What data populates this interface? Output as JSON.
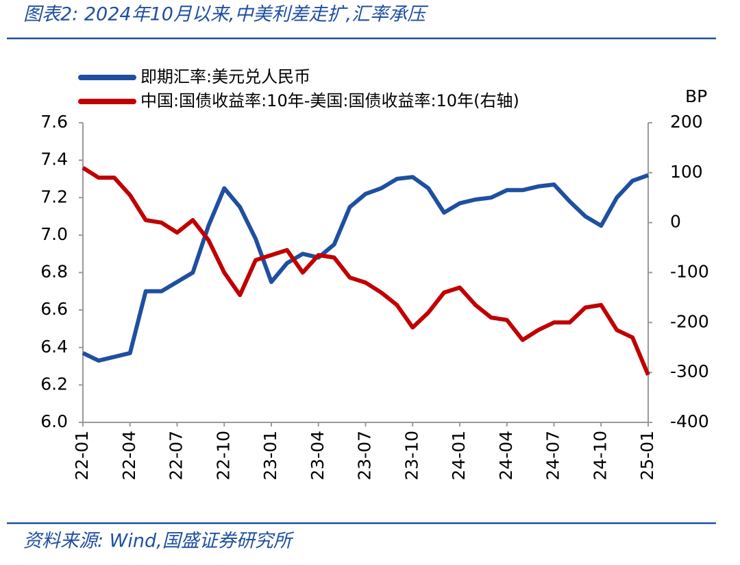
{
  "chart_data": {
    "type": "line",
    "title": "图表2: 2024年10月以来,中美利差走扩,汇率承压",
    "source": "资料来源: Wind,国盛证券研究所",
    "y2_label": "BP",
    "categories": [
      "22-01",
      null,
      null,
      "22-04",
      null,
      null,
      "22-07",
      null,
      null,
      "22-10",
      null,
      null,
      "23-01",
      null,
      null,
      "23-04",
      null,
      null,
      "23-07",
      null,
      null,
      "23-10",
      null,
      null,
      "24-01",
      null,
      null,
      "24-04",
      null,
      null,
      "24-07",
      null,
      null,
      "24-10",
      null,
      null,
      "25-01"
    ],
    "series": [
      {
        "name": "即期汇率:美元兑人民币",
        "color": "#1f4fa0",
        "values": [
          6.37,
          6.33,
          6.35,
          6.37,
          6.7,
          6.7,
          6.75,
          6.8,
          7.05,
          7.25,
          7.15,
          6.98,
          6.75,
          6.85,
          6.9,
          6.88,
          6.95,
          7.15,
          7.22,
          7.25,
          7.3,
          7.31,
          7.25,
          7.12,
          7.17,
          7.19,
          7.2,
          7.24,
          7.24,
          7.26,
          7.27,
          7.18,
          7.1,
          7.05,
          7.2,
          7.29,
          7.32
        ]
      },
      {
        "name": "中国:国债收益率:10年-美国:国债收益率:10年(右轴)",
        "color": "#c00000",
        "axis": "y2",
        "values": [
          110,
          90,
          90,
          55,
          5,
          0,
          -20,
          5,
          -35,
          -100,
          -145,
          -75,
          -65,
          -55,
          -100,
          -65,
          -70,
          -110,
          -120,
          -140,
          -165,
          -210,
          -180,
          -140,
          -130,
          -165,
          -190,
          -195,
          -235,
          -215,
          -200,
          -200,
          -170,
          -165,
          -215,
          -230,
          -305
        ]
      }
    ],
    "ylim": [
      6.0,
      7.6
    ],
    "yticks": [
      {
        "value": 6.0,
        "label": "6.0"
      },
      6.2,
      6.4,
      6.6,
      6.8,
      {
        "value": 7.0,
        "label": "7.0"
      },
      7.2,
      7.4,
      7.6
    ],
    "y2lim": [
      -400,
      200
    ],
    "y2ticks": [
      -400,
      -300,
      -200,
      -100,
      0,
      100,
      200
    ]
  }
}
